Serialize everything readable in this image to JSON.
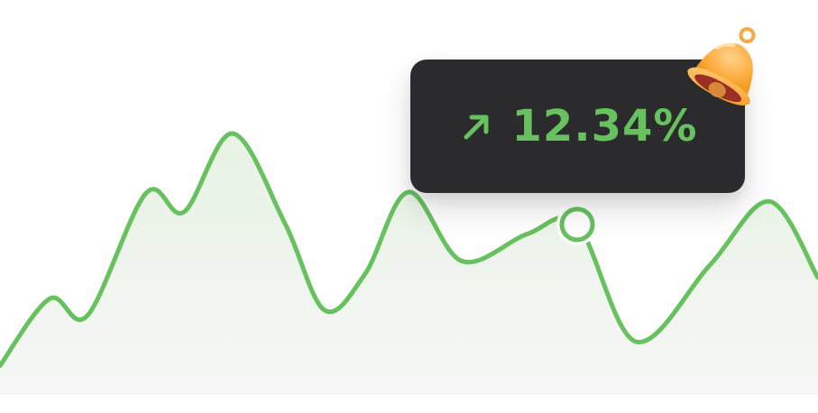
{
  "tooltip": {
    "value_text": "12.34%",
    "arrow_icon": "arrow-up-right-icon"
  },
  "notification": {
    "icon": "bell-icon"
  },
  "colors": {
    "line": "#67c15e",
    "area_top": "#eef6ec",
    "area_bottom": "#f6f6f6",
    "tooltip_bg": "#2b2b2d",
    "tooltip_text": "#67c15e",
    "crosshair": "#b7d7b2"
  },
  "chart_data": {
    "type": "line",
    "series": [
      {
        "values": [
          {
            "x": 0,
            "y": 28
          },
          {
            "x": 55,
            "y": 92
          },
          {
            "x": 97,
            "y": 76
          },
          {
            "x": 162,
            "y": 193
          },
          {
            "x": 204,
            "y": 175
          },
          {
            "x": 258,
            "y": 250
          },
          {
            "x": 316,
            "y": 164
          },
          {
            "x": 360,
            "y": 81
          },
          {
            "x": 405,
            "y": 116
          },
          {
            "x": 453,
            "y": 194
          },
          {
            "x": 512,
            "y": 128
          },
          {
            "x": 585,
            "y": 154
          },
          {
            "x": 640,
            "y": 163
          },
          {
            "x": 705,
            "y": 51
          },
          {
            "x": 787,
            "y": 124
          },
          {
            "x": 853,
            "y": 185
          },
          {
            "x": 907,
            "y": 112
          }
        ]
      }
    ],
    "highlight": {
      "x": 640,
      "y": 163,
      "label": "12.34%"
    },
    "xlim": [
      0,
      907
    ],
    "ylim": [
      0,
      300
    ],
    "grid": false
  }
}
